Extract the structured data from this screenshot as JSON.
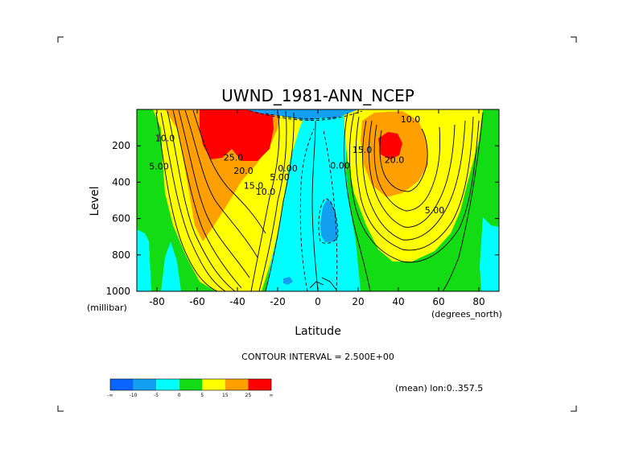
{
  "chart_data": {
    "type": "contour",
    "title": "UWND_1981-ANN_NCEP",
    "xlabel": "Latitude",
    "ylabel": "Level",
    "x_units": "(degrees_north)",
    "y_units": "(millibar)",
    "xlim": [
      -90,
      90
    ],
    "ylim": [
      1000,
      0
    ],
    "x_ticks": [
      -80,
      -60,
      -40,
      -20,
      0,
      20,
      40,
      60,
      80
    ],
    "y_ticks": [
      200,
      400,
      600,
      800,
      1000
    ],
    "contour_interval_text": "CONTOUR INTERVAL = 2.500E+00",
    "footnote": "(mean) lon:0..357.5",
    "contour_labels": [
      {
        "text": "10.0",
        "lat": -76,
        "lev": 175
      },
      {
        "text": "5.00",
        "lat": -79,
        "lev": 330
      },
      {
        "text": "25.0",
        "lat": -42,
        "lev": 280
      },
      {
        "text": "20.0",
        "lat": -37,
        "lev": 355
      },
      {
        "text": "15.0",
        "lat": -32,
        "lev": 435
      },
      {
        "text": "10.0",
        "lat": -26,
        "lev": 470
      },
      {
        "text": "5.00",
        "lat": -19,
        "lev": 390
      },
      {
        "text": "0.00",
        "lat": -15,
        "lev": 340
      },
      {
        "text": "0.00",
        "lat": 11,
        "lev": 325
      },
      {
        "text": "15.0",
        "lat": 22,
        "lev": 240
      },
      {
        "text": "20.0",
        "lat": 38,
        "lev": 295
      },
      {
        "text": "10.0",
        "lat": 46,
        "lev": 70
      },
      {
        "text": "5.00",
        "lat": 58,
        "lev": 570
      }
    ],
    "colorbar": {
      "colors": [
        "#0a64ff",
        "#14a0f0",
        "#00ffff",
        "#14dc14",
        "#ffff00",
        "#ffa000",
        "#ff0000"
      ],
      "labels": [
        "-∞",
        "-10",
        "-5",
        "0",
        "5",
        "15",
        "25",
        "∞"
      ]
    }
  },
  "colors": {
    "neg_blue": "#14a0f0",
    "light_cyan": "#00ffff",
    "green": "#14dc14",
    "yellow": "#ffff00",
    "orange": "#ffa000",
    "red": "#ff0000"
  }
}
